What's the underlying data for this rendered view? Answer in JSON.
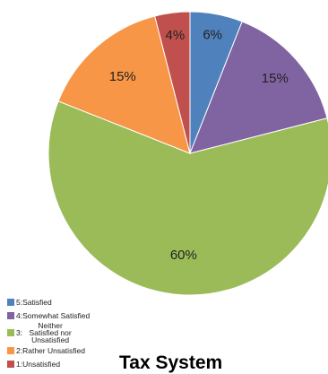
{
  "chart_data": {
    "type": "pie",
    "title": "Tax System",
    "slices": [
      {
        "label": "6%",
        "value": 6,
        "legend_code": "5:",
        "legend_text": "Satisfied",
        "color": "#4f81bd"
      },
      {
        "label": "15%",
        "value": 15,
        "legend_code": "4:",
        "legend_text": "Somewhat Satisfied",
        "color": "#8064a2"
      },
      {
        "label": "60%",
        "value": 60,
        "legend_code": "3:",
        "legend_text": "Neither Satisfied nor Unsatisfied",
        "color": "#9bbb59"
      },
      {
        "label": "15%",
        "value": 15,
        "legend_code": "2:",
        "legend_text": "Rather Unsatisfied",
        "color": "#f79646"
      },
      {
        "label": "4%",
        "value": 4,
        "legend_code": "1:",
        "legend_text": "Unsatisfied",
        "color": "#c0504d"
      }
    ],
    "legend_position": "bottom-left"
  }
}
